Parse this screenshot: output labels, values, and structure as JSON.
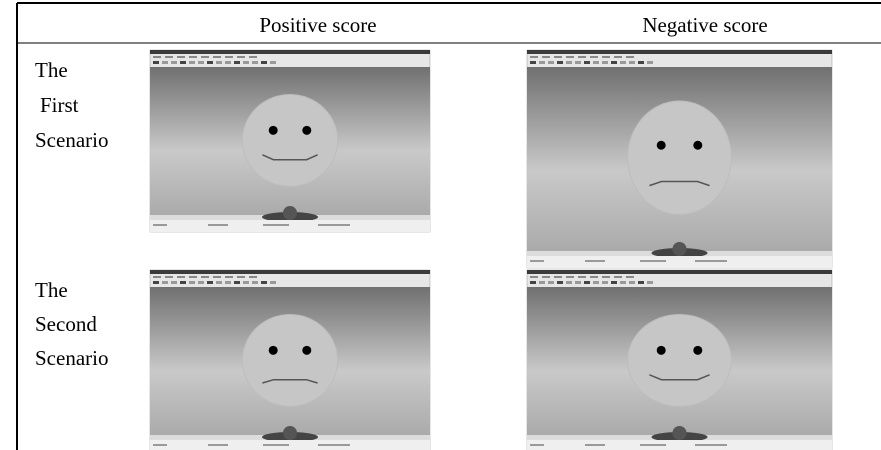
{
  "header": {
    "columns": [
      "Positive score",
      "Negative score"
    ]
  },
  "rows": [
    {
      "label": [
        "The",
        "First",
        "Scenario"
      ]
    },
    {
      "label": [
        "The",
        "Second",
        "Scenario"
      ]
    }
  ]
}
